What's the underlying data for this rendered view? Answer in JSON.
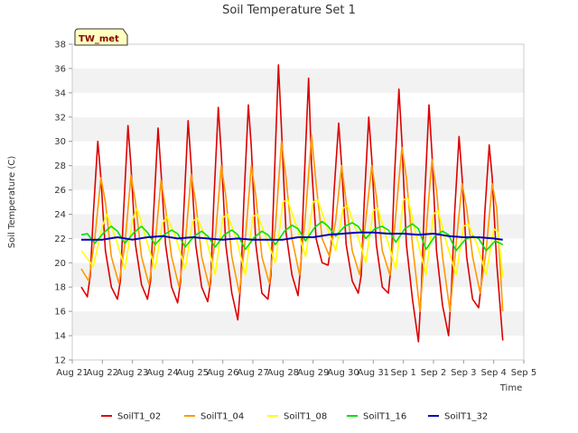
{
  "chart_data": {
    "type": "line",
    "title": "Soil Temperature Set 1",
    "xlabel": "Time",
    "ylabel": "Soil Temperature (C)",
    "badge": "TW_met",
    "ylim": [
      12,
      38
    ],
    "yticks": [
      12,
      14,
      16,
      18,
      20,
      22,
      24,
      26,
      28,
      30,
      32,
      34,
      36,
      38
    ],
    "xlim": [
      0,
      15
    ],
    "x_unit": "days since Aug 21",
    "xticks": [
      {
        "value": 0,
        "label": "Aug 21"
      },
      {
        "value": 1,
        "label": "Aug 22"
      },
      {
        "value": 2,
        "label": "Aug 23"
      },
      {
        "value": 3,
        "label": "Aug 24"
      },
      {
        "value": 4,
        "label": "Aug 25"
      },
      {
        "value": 5,
        "label": "Aug 26"
      },
      {
        "value": 6,
        "label": "Aug 27"
      },
      {
        "value": 7,
        "label": "Aug 28"
      },
      {
        "value": 8,
        "label": "Aug 29"
      },
      {
        "value": 9,
        "label": "Aug 30"
      },
      {
        "value": 10,
        "label": "Aug 31"
      },
      {
        "value": 11,
        "label": "Sep 1"
      },
      {
        "value": 12,
        "label": "Sep 2"
      },
      {
        "value": 13,
        "label": "Sep 3"
      },
      {
        "value": 14,
        "label": "Sep 4"
      },
      {
        "value": 15,
        "label": "Sep 5"
      }
    ],
    "grid": "horizontal bands",
    "legend_position": "bottom",
    "series": [
      {
        "name": "SoilT1_02",
        "color": "#dd0000",
        "x": [
          0.3,
          0.5,
          0.6,
          0.7,
          0.85,
          0.95,
          1.1,
          1.3,
          1.5,
          1.6,
          1.7,
          1.85,
          1.95,
          2.1,
          2.3,
          2.5,
          2.6,
          2.7,
          2.85,
          2.95,
          3.1,
          3.3,
          3.5,
          3.6,
          3.7,
          3.85,
          3.95,
          4.1,
          4.3,
          4.5,
          4.6,
          4.7,
          4.85,
          4.95,
          5.1,
          5.3,
          5.5,
          5.6,
          5.7,
          5.85,
          5.95,
          6.1,
          6.3,
          6.5,
          6.6,
          6.7,
          6.85,
          6.95,
          7.1,
          7.3,
          7.5,
          7.6,
          7.7,
          7.85,
          7.95,
          8.1,
          8.3,
          8.5,
          8.6,
          8.7,
          8.85,
          8.95,
          9.1,
          9.3,
          9.5,
          9.6,
          9.7,
          9.85,
          9.95,
          10.1,
          10.3,
          10.5,
          10.6,
          10.7,
          10.85,
          10.95,
          11.1,
          11.3,
          11.5,
          11.6,
          11.7,
          11.85,
          11.95,
          12.1,
          12.3,
          12.5,
          12.6,
          12.7,
          12.85,
          12.95,
          13.1,
          13.3,
          13.5,
          13.6,
          13.7,
          13.85,
          13.95,
          14.1,
          14.3
        ],
        "y": [
          18.0,
          17.2,
          19.0,
          24.0,
          30.0,
          27.0,
          21.0,
          18.0,
          17.0,
          18.5,
          24.0,
          31.3,
          28.0,
          21.5,
          18.2,
          17.0,
          18.5,
          24.0,
          31.1,
          27.5,
          21.5,
          18.0,
          16.7,
          18.5,
          24.0,
          31.7,
          28.0,
          21.5,
          18.0,
          16.8,
          18.5,
          25.0,
          32.8,
          29.0,
          21.5,
          17.5,
          15.3,
          18.5,
          25.0,
          33.0,
          29.5,
          21.5,
          17.5,
          17.0,
          19.0,
          26.0,
          36.3,
          31.0,
          22.5,
          19.0,
          17.3,
          20.0,
          26.5,
          35.2,
          28.0,
          22.0,
          20.0,
          19.8,
          21.5,
          26.0,
          31.5,
          28.0,
          21.5,
          18.5,
          17.5,
          19.0,
          25.0,
          32.0,
          28.5,
          21.5,
          18.0,
          17.5,
          20.0,
          27.0,
          34.3,
          30.0,
          21.5,
          17.0,
          13.5,
          18.0,
          25.0,
          33.0,
          29.0,
          21.0,
          16.5,
          14.0,
          18.0,
          24.0,
          30.4,
          27.0,
          20.5,
          17.0,
          16.3,
          18.5,
          24.0,
          29.7,
          27.0,
          20.0,
          13.6
        ]
      },
      {
        "name": "SoilT1_04",
        "color": "#ff9900",
        "x": [
          0.3,
          0.55,
          0.75,
          0.95,
          1.1,
          1.3,
          1.55,
          1.75,
          1.95,
          2.1,
          2.3,
          2.55,
          2.75,
          2.95,
          3.1,
          3.3,
          3.55,
          3.75,
          3.95,
          4.1,
          4.3,
          4.55,
          4.75,
          4.95,
          5.1,
          5.3,
          5.55,
          5.75,
          5.95,
          6.1,
          6.3,
          6.55,
          6.75,
          6.95,
          7.1,
          7.3,
          7.55,
          7.75,
          7.95,
          8.1,
          8.3,
          8.55,
          8.75,
          8.95,
          9.1,
          9.3,
          9.55,
          9.75,
          9.95,
          10.1,
          10.3,
          10.55,
          10.75,
          10.95,
          11.1,
          11.3,
          11.55,
          11.75,
          11.95,
          12.1,
          12.3,
          12.55,
          12.75,
          12.95,
          13.1,
          13.3,
          13.55,
          13.75,
          13.95,
          14.1,
          14.3
        ],
        "y": [
          19.5,
          18.5,
          22.0,
          27.0,
          25.0,
          20.5,
          18.3,
          21.5,
          27.2,
          25.0,
          20.5,
          18.2,
          21.5,
          26.8,
          24.5,
          20.5,
          18.0,
          21.5,
          27.3,
          25.0,
          20.5,
          18.0,
          22.0,
          28.0,
          25.5,
          20.5,
          17.5,
          22.0,
          28.0,
          25.5,
          20.5,
          18.3,
          23.0,
          30.0,
          27.0,
          22.0,
          19.0,
          24.0,
          30.5,
          26.5,
          22.0,
          20.5,
          23.5,
          28.0,
          25.0,
          21.0,
          19.0,
          23.5,
          28.0,
          25.5,
          21.0,
          19.0,
          24.0,
          29.5,
          27.0,
          21.5,
          16.0,
          22.5,
          28.5,
          26.0,
          20.5,
          16.0,
          21.5,
          26.5,
          24.5,
          20.5,
          17.5,
          21.0,
          26.5,
          24.5,
          16.0
        ]
      },
      {
        "name": "SoilT1_08",
        "color": "#ffff00",
        "x": [
          0.3,
          0.7,
          1.0,
          1.15,
          1.45,
          1.75,
          2.0,
          2.15,
          2.45,
          2.75,
          3.0,
          3.15,
          3.45,
          3.75,
          4.0,
          4.15,
          4.45,
          4.75,
          5.0,
          5.15,
          5.45,
          5.75,
          6.0,
          6.15,
          6.45,
          6.75,
          7.0,
          7.15,
          7.45,
          7.75,
          8.0,
          8.15,
          8.45,
          8.75,
          9.0,
          9.15,
          9.45,
          9.75,
          10.0,
          10.15,
          10.45,
          10.75,
          11.0,
          11.15,
          11.45,
          11.75,
          12.0,
          12.15,
          12.45,
          12.75,
          13.0,
          13.15,
          13.45,
          13.75,
          14.0,
          14.15,
          14.3
        ],
        "y": [
          21.0,
          19.7,
          23.0,
          24.0,
          22.0,
          19.5,
          23.5,
          24.5,
          22.0,
          19.5,
          23.3,
          23.8,
          22.0,
          19.5,
          23.4,
          23.7,
          22.0,
          19.0,
          23.7,
          24.0,
          22.0,
          19.0,
          23.8,
          24.0,
          22.0,
          20.0,
          25.0,
          25.2,
          23.0,
          20.5,
          25.0,
          25.2,
          23.0,
          21.0,
          24.5,
          24.7,
          22.5,
          20.0,
          24.3,
          24.5,
          22.0,
          19.5,
          25.2,
          25.3,
          22.0,
          19.0,
          24.0,
          24.3,
          21.5,
          19.0,
          23.0,
          23.2,
          21.5,
          19.0,
          22.8,
          22.5,
          18.8
        ]
      },
      {
        "name": "SoilT1_16",
        "color": "#00e000",
        "x": [
          0.3,
          0.5,
          0.75,
          1.05,
          1.3,
          1.5,
          1.75,
          2.05,
          2.3,
          2.5,
          2.75,
          3.05,
          3.3,
          3.5,
          3.75,
          4.05,
          4.3,
          4.5,
          4.75,
          5.05,
          5.3,
          5.5,
          5.75,
          6.05,
          6.3,
          6.5,
          6.75,
          7.05,
          7.3,
          7.5,
          7.75,
          8.05,
          8.3,
          8.5,
          8.75,
          9.05,
          9.3,
          9.5,
          9.75,
          10.05,
          10.3,
          10.5,
          10.75,
          11.05,
          11.3,
          11.5,
          11.75,
          12.05,
          12.3,
          12.5,
          12.75,
          13.05,
          13.3,
          13.5,
          13.75,
          14.05,
          14.3
        ],
        "y": [
          22.3,
          22.4,
          21.6,
          22.5,
          23.0,
          22.6,
          21.6,
          22.5,
          23.0,
          22.5,
          21.5,
          22.3,
          22.7,
          22.4,
          21.3,
          22.2,
          22.6,
          22.2,
          21.3,
          22.3,
          22.7,
          22.3,
          21.1,
          22.1,
          22.6,
          22.3,
          21.5,
          22.6,
          23.1,
          22.8,
          21.8,
          22.9,
          23.4,
          23.0,
          22.2,
          23.0,
          23.3,
          23.0,
          22.0,
          22.8,
          23.0,
          22.7,
          21.7,
          22.8,
          23.2,
          22.8,
          21.1,
          22.2,
          22.6,
          22.3,
          21.0,
          21.9,
          22.2,
          22.0,
          21.0,
          21.8,
          21.5
        ]
      },
      {
        "name": "SoilT1_32",
        "color": "#0000bb",
        "x": [
          0.3,
          1.0,
          1.5,
          2.0,
          2.5,
          3.0,
          3.5,
          4.0,
          4.5,
          5.0,
          5.5,
          6.0,
          6.5,
          7.0,
          7.5,
          8.0,
          8.5,
          9.0,
          9.5,
          10.0,
          10.5,
          11.0,
          11.5,
          12.0,
          12.5,
          13.0,
          13.5,
          14.0,
          14.3
        ],
        "y": [
          21.9,
          21.9,
          22.1,
          21.9,
          22.1,
          22.2,
          22.0,
          22.1,
          22.0,
          21.9,
          22.0,
          21.9,
          21.9,
          21.9,
          22.1,
          22.1,
          22.3,
          22.4,
          22.5,
          22.5,
          22.4,
          22.4,
          22.3,
          22.4,
          22.2,
          22.1,
          22.1,
          22.0,
          21.9
        ]
      }
    ]
  }
}
